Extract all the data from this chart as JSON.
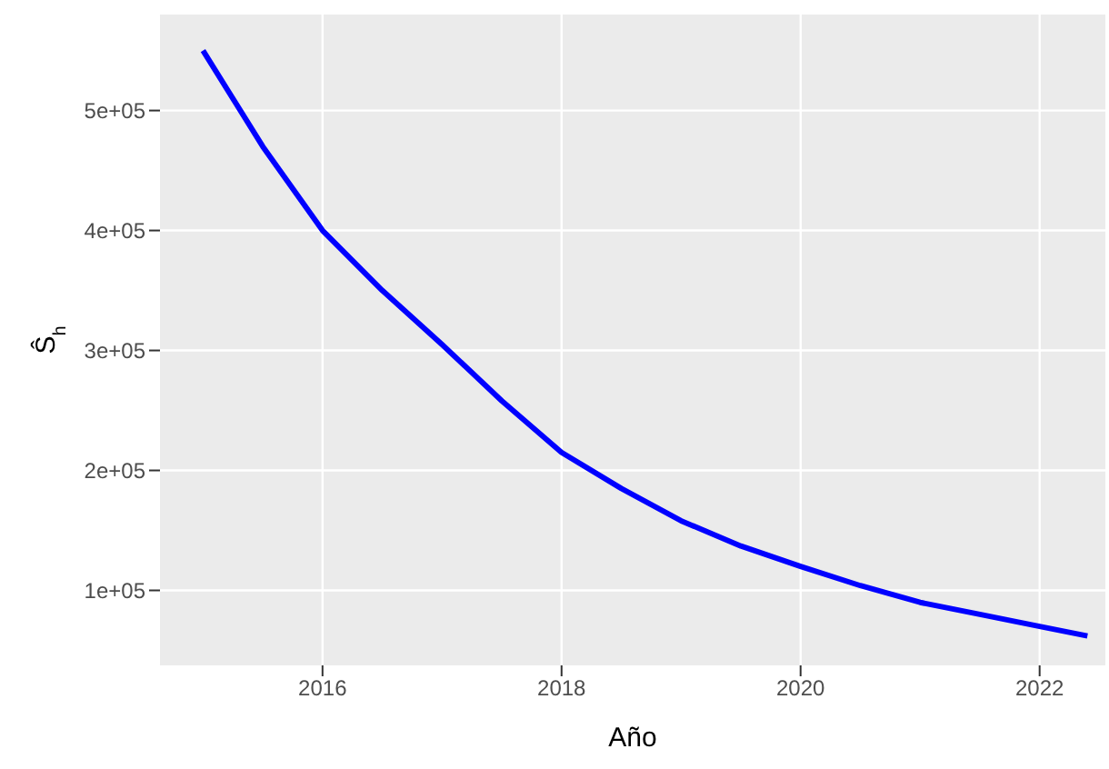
{
  "chart_data": {
    "type": "line",
    "xlabel": "Año",
    "ylabel": "Ŝ$_{h}$",
    "x": [
      2015,
      2015.5,
      2016,
      2016.5,
      2017,
      2017.5,
      2018,
      2018.5,
      2019,
      2019.5,
      2020,
      2020.5,
      2021,
      2021.5,
      2022,
      2022.4
    ],
    "series": [
      {
        "color": "#0000ff",
        "values": [
          550000,
          470000,
          400000,
          350000,
          305000,
          258000,
          215000,
          185000,
          158000,
          137000,
          120000,
          104000,
          90000,
          80000,
          70000,
          62000
        ]
      }
    ],
    "xlim": [
      2014.64,
      2022.55
    ],
    "xticks": [
      2016,
      2018,
      2020,
      2022
    ],
    "ylim": [
      37500,
      580000
    ],
    "yticks": [
      {
        "value": 100000,
        "label": "1e+05"
      },
      {
        "value": 200000,
        "label": "2e+05"
      },
      {
        "value": 300000,
        "label": "3e+05"
      },
      {
        "value": 400000,
        "label": "4e+05"
      },
      {
        "value": 500000,
        "label": "5e+05"
      }
    ],
    "grid": true,
    "legend": false,
    "marker": "none",
    "line_style": "solid"
  }
}
